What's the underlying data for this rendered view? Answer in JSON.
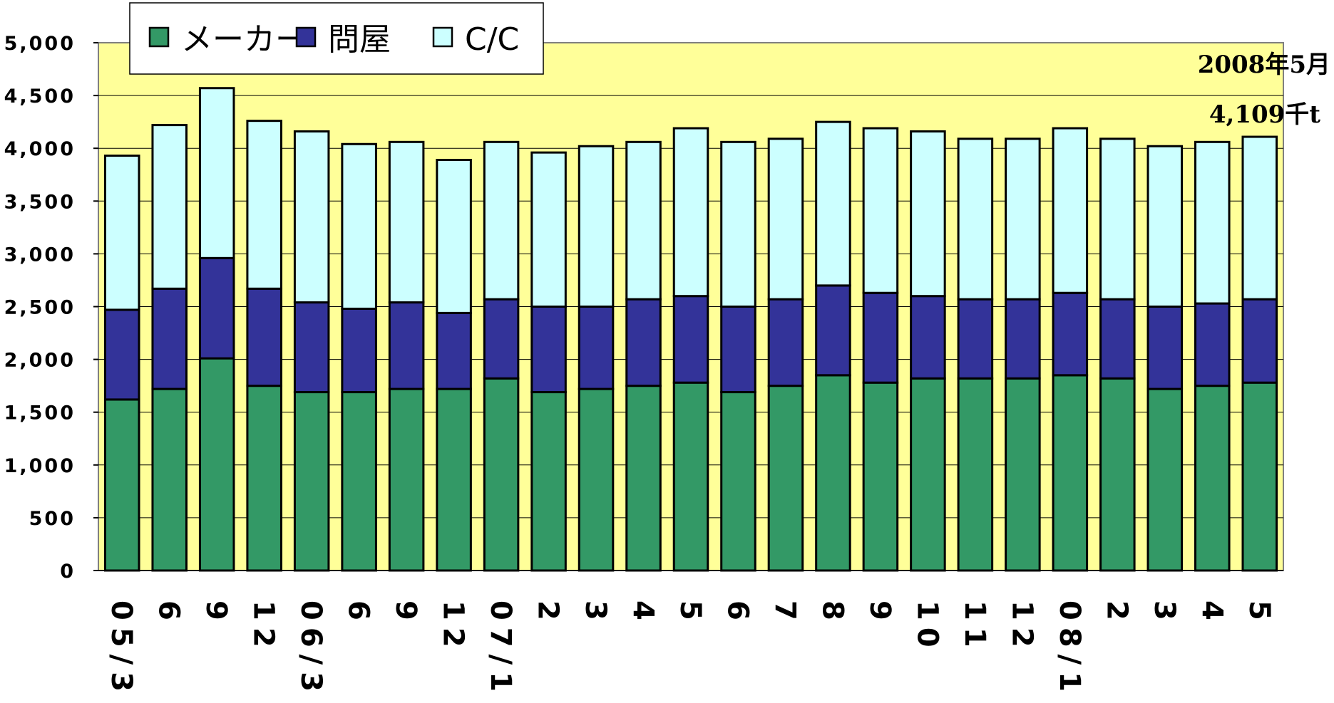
{
  "chart_data": {
    "type": "bar",
    "stacked": true,
    "categories": [
      "05/3",
      "6",
      "9",
      "12",
      "06/3",
      "6",
      "9",
      "12",
      "07/1",
      "2",
      "3",
      "4",
      "5",
      "6",
      "7",
      "8",
      "9",
      "10",
      "11",
      "12",
      "08/1",
      "2",
      "3",
      "4",
      "5"
    ],
    "series": [
      {
        "name": "メーカー",
        "color": "#339966",
        "values": [
          1620,
          1720,
          2010,
          1750,
          1690,
          1690,
          1720,
          1720,
          1820,
          1690,
          1720,
          1750,
          1780,
          1690,
          1750,
          1850,
          1780,
          1820,
          1820,
          1820,
          1850,
          1820,
          1720,
          1750,
          1780
        ]
      },
      {
        "name": "問屋",
        "color": "#333399",
        "values": [
          850,
          950,
          950,
          920,
          850,
          790,
          820,
          720,
          750,
          810,
          780,
          820,
          820,
          810,
          820,
          850,
          850,
          780,
          750,
          750,
          780,
          750,
          780,
          780,
          790
        ]
      },
      {
        "name": "C/C",
        "color": "#ccffff",
        "values": [
          1460,
          1550,
          1610,
          1590,
          1620,
          1560,
          1520,
          1450,
          1490,
          1460,
          1520,
          1490,
          1590,
          1560,
          1520,
          1550,
          1560,
          1560,
          1520,
          1520,
          1560,
          1520,
          1520,
          1530,
          1539
        ]
      }
    ],
    "ylim": [
      0,
      5000
    ],
    "yticks": [
      0,
      500,
      1000,
      1500,
      2000,
      2500,
      3000,
      3500,
      4000,
      4500,
      5000
    ],
    "ytick_labels": [
      "0",
      "500",
      "1,000",
      "1,500",
      "2,000",
      "2,500",
      "3,000",
      "3,500",
      "4,000",
      "4,500",
      "5,000"
    ],
    "grid": true,
    "legend_position": "top-left",
    "plot_background": "#ffff99",
    "annotation": {
      "line1": "2008年5月",
      "line2": "4,109千t"
    }
  }
}
